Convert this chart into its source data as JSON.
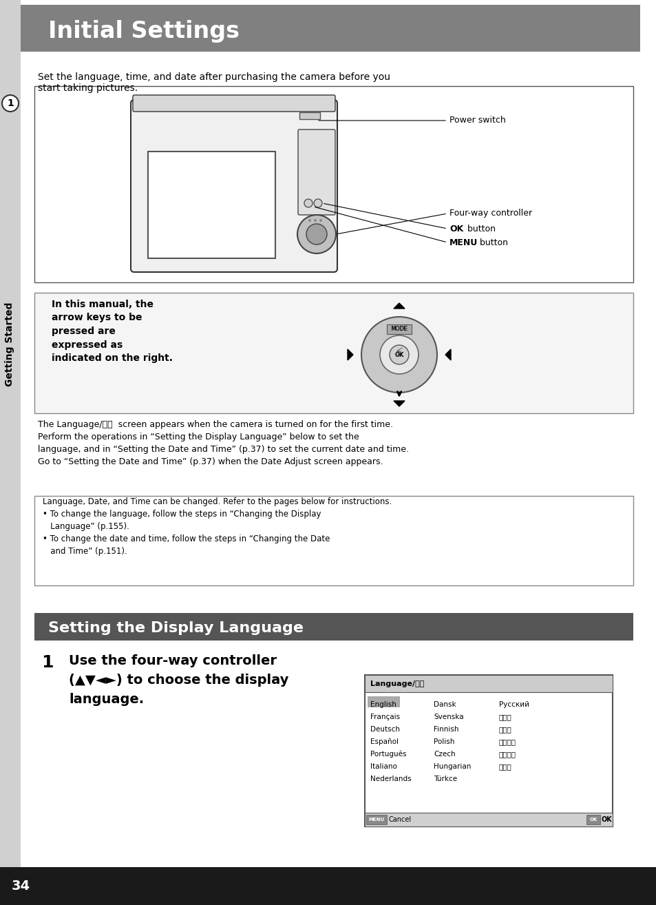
{
  "bg_color": "#ffffff",
  "header_bg": "#808080",
  "header_text": "Initial Settings",
  "header_text_color": "#ffffff",
  "sidebar_bg": "#d0d0d0",
  "sidebar_text": "Getting Started",
  "sidebar_circle_text": "1",
  "section2_header_bg": "#555555",
  "section2_header_text": "Setting the Display Language",
  "body_text_color": "#000000",
  "intro_text": "Set the language, time, and date after purchasing the camera before you\nstart taking pictures.",
  "camera_labels": [
    "Power switch",
    "Four-way controller",
    "OK  button",
    "MENU  button"
  ],
  "note_box_text": "In this manual, the\narrow keys to be\npressed are\nexpressed as\nindicated on the right.",
  "info_box_text": "Language, Date, and Time can be changed. Refer to the pages below for instructions.\n• To change the language, follow the steps in “Changing the Display\n   Language” (p.155).\n• To change the date and time, follow the steps in “Changing the Date\n   and Time” (p.151).",
  "step1_num": "1",
  "step1_text": "Use the four-way controller\n(▲▼◄►) to choose the display\nlanguage.",
  "lang_title": "Language/言語",
  "lang_rows": [
    [
      "English",
      "Dansk",
      "Русский"
    ],
    [
      "Français",
      "Svenska",
      "ไทย"
    ],
    [
      "Deutsch",
      "Finnish",
      "한국어"
    ],
    [
      "Español",
      "Polish",
      "中文繁體"
    ],
    [
      "Português",
      "Czech",
      "中文简体"
    ],
    [
      "Italiano",
      "Hungarian",
      "日本語"
    ],
    [
      "Nederlands",
      "Türkce",
      ""
    ]
  ],
  "lang_footer_left": "MENU Cancel",
  "lang_footer_right": "OK OK",
  "page_num": "34",
  "footer_bg": "#1a1a1a"
}
